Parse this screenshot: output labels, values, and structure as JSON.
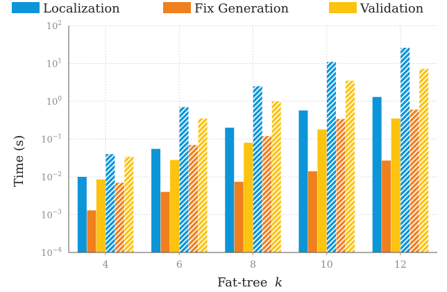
{
  "chart_data": {
    "type": "bar",
    "xlabel": "Fat-tree",
    "xlabel_var": "k",
    "ylabel": "Time (s)",
    "yscale": "log",
    "ylim": [
      0.0001,
      100
    ],
    "y_ticks": [
      {
        "value": 0.0001,
        "mantissa": "10",
        "exp": "−4"
      },
      {
        "value": 0.001,
        "mantissa": "10",
        "exp": "−3"
      },
      {
        "value": 0.01,
        "mantissa": "10",
        "exp": "−2"
      },
      {
        "value": 0.1,
        "mantissa": "10",
        "exp": "−1"
      },
      {
        "value": 1,
        "mantissa": "10",
        "exp": "0"
      },
      {
        "value": 10,
        "mantissa": "10",
        "exp": "1"
      },
      {
        "value": 100,
        "mantissa": "10",
        "exp": "2"
      }
    ],
    "categories": [
      "4",
      "6",
      "8",
      "10",
      "12"
    ],
    "grid": true,
    "legend_position": "top",
    "legend": [
      {
        "name": "Localization",
        "color": "#0c95d8"
      },
      {
        "name": "Fix Generation",
        "color": "#f07f1d"
      },
      {
        "name": "Validation",
        "color": "#fcc30f"
      }
    ],
    "series": [
      {
        "name": "Localization",
        "color": "#0c95d8",
        "hatched": false,
        "values": [
          0.01,
          0.055,
          0.2,
          0.57,
          1.3
        ]
      },
      {
        "name": "Fix Generation",
        "color": "#f07f1d",
        "hatched": false,
        "values": [
          0.0013,
          0.004,
          0.0074,
          0.014,
          0.027
        ]
      },
      {
        "name": "Validation",
        "color": "#fcc30f",
        "hatched": false,
        "values": [
          0.0085,
          0.028,
          0.08,
          0.18,
          0.35
        ]
      },
      {
        "name": "Localization",
        "color": "#0c95d8",
        "hatched": true,
        "values": [
          0.04,
          0.7,
          2.5,
          11,
          26
        ]
      },
      {
        "name": "Fix Generation",
        "color": "#f07f1d",
        "hatched": true,
        "values": [
          0.007,
          0.07,
          0.12,
          0.34,
          0.6
        ]
      },
      {
        "name": "Validation",
        "color": "#fcc30f",
        "hatched": true,
        "values": [
          0.034,
          0.35,
          1.0,
          3.5,
          7.2
        ]
      }
    ]
  }
}
